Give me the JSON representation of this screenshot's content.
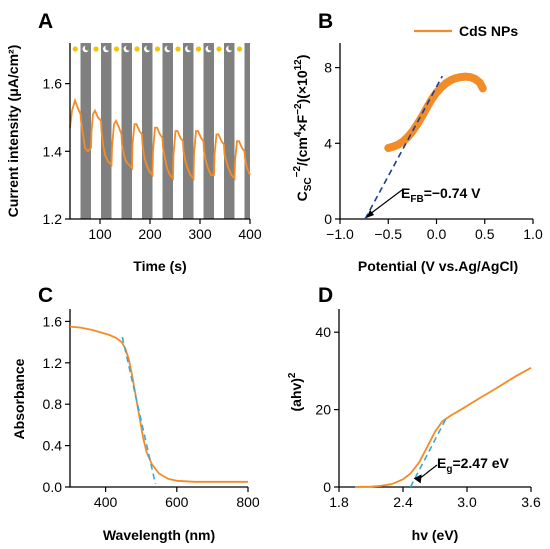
{
  "colors": {
    "curve": "#f28c28",
    "fit": "#1f3e8f",
    "fit_light": "#39a9dc",
    "dark_band": "#808080"
  },
  "chart_data": [
    {
      "panel": "A",
      "type": "line",
      "xlabel": "Time (s)",
      "ylabel": "Current intensity (μA/cm²)",
      "xlim": [
        40,
        400
      ],
      "ylim": [
        1.2,
        1.72
      ],
      "xticks": [
        "100",
        "200",
        "300",
        "400"
      ],
      "xtick_values": [
        100,
        200,
        300,
        400
      ],
      "yticks": [
        "1.2",
        "1.4",
        "1.6"
      ],
      "ytick_values": [
        1.2,
        1.4,
        1.6
      ],
      "dark_periods": [
        [
          61,
          82
        ],
        [
          102,
          123
        ],
        [
          143,
          164
        ],
        [
          184,
          205
        ],
        [
          225,
          246
        ],
        [
          266,
          287
        ],
        [
          307,
          328
        ],
        [
          348,
          369
        ],
        [
          389,
          400
        ]
      ],
      "series": [
        {
          "x": [
            40,
            44,
            50,
            55,
            61,
            62,
            66,
            70,
            76,
            82,
            83,
            86,
            90,
            96,
            102,
            103,
            106,
            110,
            116,
            123,
            124,
            128,
            132,
            138,
            143,
            144,
            148,
            152,
            158,
            164,
            165,
            169,
            173,
            179,
            184,
            185,
            189,
            193,
            199,
            205,
            206,
            210,
            214,
            220,
            225,
            226,
            230,
            234,
            240,
            246,
            247,
            251,
            255,
            261,
            266,
            267,
            271,
            275,
            281,
            287,
            288,
            292,
            296,
            302,
            307,
            308,
            312,
            316,
            322,
            328,
            329,
            333,
            337,
            343,
            348,
            349,
            353,
            357,
            363,
            369,
            370,
            374,
            378,
            384,
            389,
            390,
            394,
            400
          ],
          "y": [
            1.47,
            1.52,
            1.55,
            1.53,
            1.51,
            1.49,
            1.45,
            1.41,
            1.4,
            1.41,
            1.46,
            1.51,
            1.52,
            1.5,
            1.49,
            1.46,
            1.42,
            1.39,
            1.37,
            1.36,
            1.41,
            1.48,
            1.49,
            1.47,
            1.45,
            1.42,
            1.39,
            1.37,
            1.36,
            1.35,
            1.42,
            1.48,
            1.48,
            1.46,
            1.45,
            1.42,
            1.38,
            1.36,
            1.34,
            1.33,
            1.4,
            1.47,
            1.47,
            1.45,
            1.44,
            1.41,
            1.38,
            1.35,
            1.33,
            1.32,
            1.39,
            1.46,
            1.46,
            1.44,
            1.43,
            1.4,
            1.37,
            1.35,
            1.33,
            1.32,
            1.39,
            1.46,
            1.46,
            1.44,
            1.43,
            1.4,
            1.37,
            1.35,
            1.33,
            1.33,
            1.39,
            1.45,
            1.45,
            1.43,
            1.42,
            1.39,
            1.37,
            1.35,
            1.33,
            1.32,
            1.37,
            1.43,
            1.43,
            1.41,
            1.4,
            1.38,
            1.35,
            1.33
          ]
        }
      ]
    },
    {
      "panel": "B",
      "type": "scatter",
      "xlabel": "Potential (V vs.Ag/AgCl)",
      "ylabel_main": "C",
      "ylabel_sub": "SC",
      "ylabel_sup1": "−2",
      "ylabel_mid": "/(cm",
      "ylabel_sup2": "4",
      "ylabel_mid2": "×F",
      "ylabel_sup3": "−2",
      "ylabel_mid3": ")(×10",
      "ylabel_sup4": "12",
      "ylabel_end": ")",
      "xlim": [
        -1.0,
        1.0
      ],
      "ylim": [
        0,
        9.3
      ],
      "xticks": [
        "−1.0",
        "−0.5",
        "0.0",
        "0.5",
        "1.0"
      ],
      "xtick_values": [
        -1.0,
        -0.5,
        0.0,
        0.5,
        1.0
      ],
      "yticks": [
        "0",
        "4",
        "8"
      ],
      "ytick_values": [
        0,
        4,
        8
      ],
      "legend": "CdS NPs",
      "legend_position": "top-right",
      "series": [
        {
          "name": "CdS NPs",
          "x": [
            -0.5,
            -0.45,
            -0.4,
            -0.35,
            -0.3,
            -0.25,
            -0.2,
            -0.15,
            -0.1,
            -0.05,
            0.0,
            0.05,
            0.1,
            0.15,
            0.2,
            0.25,
            0.3,
            0.35,
            0.4,
            0.45,
            0.48
          ],
          "y": [
            3.75,
            3.82,
            3.92,
            4.08,
            4.32,
            4.62,
            5.0,
            5.42,
            5.88,
            6.32,
            6.68,
            6.96,
            7.18,
            7.34,
            7.44,
            7.5,
            7.52,
            7.5,
            7.4,
            7.2,
            6.9
          ]
        }
      ],
      "fit_line": {
        "x": [
          -0.74,
          0.06
        ],
        "y": [
          0,
          7.55
        ]
      },
      "annotation_main": "E",
      "annotation_sub": "FB",
      "annotation_value": "=−0.74 V"
    },
    {
      "panel": "C",
      "type": "line",
      "xlabel": "Wavelength (nm)",
      "ylabel": "Absorbance",
      "xlim": [
        300,
        800
      ],
      "ylim": [
        0,
        1.72
      ],
      "xticks": [
        "400",
        "600",
        "800"
      ],
      "xtick_values": [
        400,
        600,
        800
      ],
      "yticks": [
        "0.0",
        "0.4",
        "0.8",
        "1.2",
        "1.6"
      ],
      "ytick_values": [
        0.0,
        0.4,
        0.8,
        1.2,
        1.6
      ],
      "series": [
        {
          "x": [
            300,
            330,
            360,
            390,
            410,
            430,
            445,
            455,
            465,
            475,
            485,
            495,
            505,
            515,
            530,
            550,
            575,
            600,
            650,
            700,
            750,
            800
          ],
          "y": [
            1.55,
            1.54,
            1.52,
            1.49,
            1.47,
            1.44,
            1.4,
            1.34,
            1.24,
            1.07,
            0.87,
            0.68,
            0.48,
            0.34,
            0.22,
            0.13,
            0.08,
            0.06,
            0.05,
            0.05,
            0.05,
            0.05
          ]
        }
      ],
      "fit_line": {
        "x": [
          447,
          540
        ],
        "y": [
          1.45,
          0.03
        ]
      }
    },
    {
      "panel": "D",
      "type": "line",
      "xlabel": "hv (eV)",
      "ylabel_main": "(ahv)",
      "ylabel_sup": "2",
      "xlim": [
        1.8,
        3.6
      ],
      "ylim": [
        0,
        46
      ],
      "xticks": [
        "1.8",
        "2.4",
        "3.0",
        "3.6"
      ],
      "xtick_values": [
        1.8,
        2.4,
        3.0,
        3.6
      ],
      "yticks": [
        "0",
        "20",
        "40"
      ],
      "ytick_values": [
        0,
        20,
        40
      ],
      "series": [
        {
          "x": [
            1.95,
            2.0,
            2.1,
            2.2,
            2.3,
            2.4,
            2.47,
            2.55,
            2.63,
            2.7,
            2.77,
            2.85,
            2.95,
            3.05,
            3.15,
            3.25,
            3.35,
            3.45,
            3.6
          ],
          "y": [
            0,
            0.05,
            0.1,
            0.3,
            0.8,
            2.0,
            3.5,
            6.3,
            10.5,
            14.3,
            17.0,
            18.5,
            20.1,
            21.8,
            23.5,
            25.1,
            26.8,
            28.5,
            30.8
          ]
        }
      ],
      "fit_line": {
        "x": [
          2.47,
          2.8
        ],
        "y": [
          0,
          17.5
        ]
      },
      "annotation_main": "E",
      "annotation_sub": "g",
      "annotation_value": "=2.47 eV"
    }
  ]
}
